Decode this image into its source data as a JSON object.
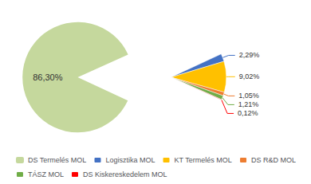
{
  "chart_data": [
    {
      "type": "pie",
      "categories": [
        "DS Termelés MOL"
      ],
      "values": [
        86.3
      ],
      "value_labels": [
        "86,30%"
      ],
      "colors": [
        "#c5d89d"
      ],
      "data_labels": true,
      "legend": "bottom"
    },
    {
      "type": "pie",
      "categories": [
        "Logisztika MOL",
        "KT Termelés MOL",
        "DS R&D MOL",
        "TÁSZ MOL",
        "DS Kiskereskedelem MOL"
      ],
      "values": [
        2.29,
        9.02,
        1.05,
        1.21,
        0.12
      ],
      "value_labels": [
        "2,29%",
        "9,02%",
        "1,05%",
        "1,21%",
        "0,12%"
      ],
      "colors": [
        "#4472c4",
        "#ffc000",
        "#ed7d31",
        "#70ad47",
        "#ff0000"
      ],
      "data_labels": true,
      "legend": "bottom"
    }
  ]
}
